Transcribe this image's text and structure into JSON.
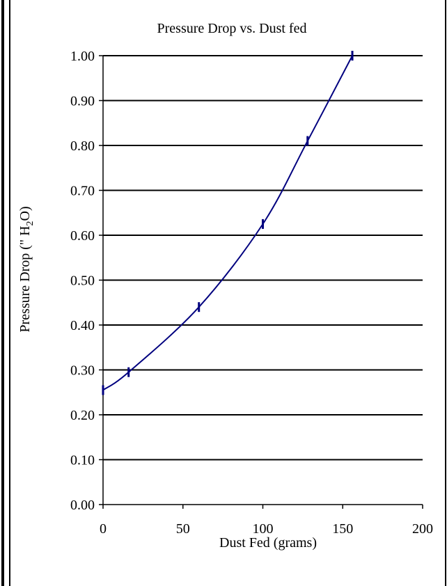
{
  "chart_data": {
    "type": "line",
    "title": "Pressure Drop vs. Dust fed",
    "xlabel": "Dust Fed (grams)",
    "ylabel_parts": {
      "prefix": "Pressure Drop (\" H",
      "subscript": "2",
      "suffix": "O)"
    },
    "xlim": [
      0,
      200
    ],
    "ylim": [
      0,
      1.0
    ],
    "x_ticks": [
      "0",
      "50",
      "100",
      "150",
      "200"
    ],
    "y_ticks": [
      "0.00",
      "0.10",
      "0.20",
      "0.30",
      "0.40",
      "0.50",
      "0.60",
      "0.70",
      "0.80",
      "0.90",
      "1.00"
    ],
    "grid": "horizontal",
    "series": [
      {
        "color": "#00007f",
        "marker": "vertical-dash",
        "points": [
          {
            "x": 0,
            "y": 0.255
          },
          {
            "x": 16,
            "y": 0.295
          },
          {
            "x": 60,
            "y": 0.44
          },
          {
            "x": 100,
            "y": 0.625
          },
          {
            "x": 128,
            "y": 0.81
          },
          {
            "x": 156,
            "y": 1.0
          }
        ]
      }
    ]
  }
}
